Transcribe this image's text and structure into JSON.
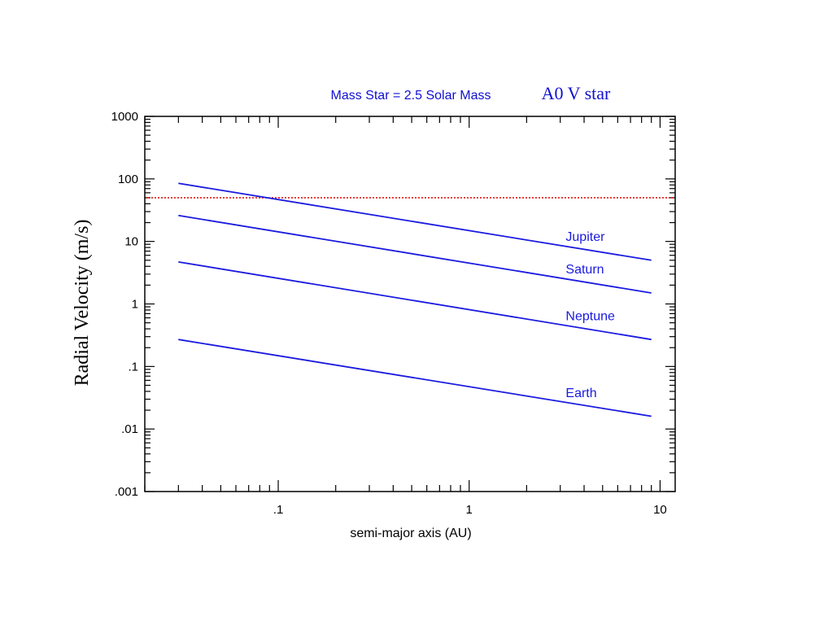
{
  "chart_data": {
    "type": "line",
    "title": "Mass Star = 2.5 Solar Mass",
    "subtitle": "A0 V star",
    "xlabel": "semi-major axis (AU)",
    "ylabel": "Radial Velocity (m/s)",
    "x_scale": "log",
    "y_scale": "log",
    "xlim": [
      0.02,
      12
    ],
    "ylim": [
      0.001,
      1000
    ],
    "x_tick_labels": [
      {
        "value": 0.1,
        "label": ".1"
      },
      {
        "value": 1,
        "label": "1"
      },
      {
        "value": 10,
        "label": "10"
      }
    ],
    "y_tick_labels": [
      {
        "value": 1000,
        "label": "1000"
      },
      {
        "value": 100,
        "label": "100"
      },
      {
        "value": 10,
        "label": "10"
      },
      {
        "value": 1,
        "label": "1"
      },
      {
        "value": 0.1,
        "label": ".1"
      },
      {
        "value": 0.01,
        "label": ".01"
      },
      {
        "value": 0.001,
        "label": ".001"
      }
    ],
    "grid": false,
    "series": [
      {
        "name": "Jupiter",
        "x": [
          0.03,
          9
        ],
        "y": [
          85,
          5
        ],
        "color": "#1a1ae0"
      },
      {
        "name": "Saturn",
        "x": [
          0.03,
          9
        ],
        "y": [
          26,
          1.5
        ],
        "color": "#1a1ae0"
      },
      {
        "name": "Neptune",
        "x": [
          0.03,
          9
        ],
        "y": [
          4.7,
          0.27
        ],
        "color": "#1a1ae0"
      },
      {
        "name": "Earth",
        "x": [
          0.03,
          9
        ],
        "y": [
          0.27,
          0.016
        ],
        "color": "#1a1ae0"
      }
    ],
    "reference_line": {
      "y": 50,
      "color": "#e00000",
      "style": "dotted"
    }
  }
}
